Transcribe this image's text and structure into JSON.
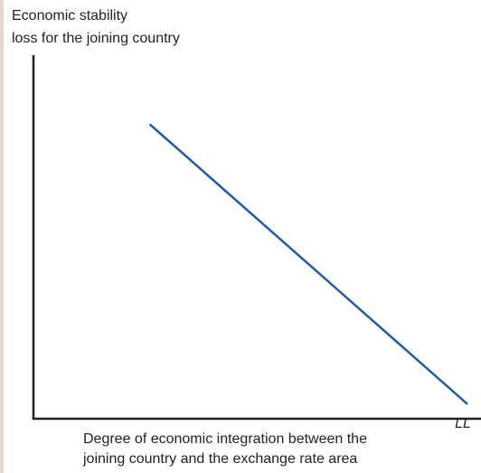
{
  "colors": {
    "left_border": "#e4d6cf",
    "axis": "#231f20",
    "curve": "#1f5aa8",
    "text": "#231f20"
  },
  "chart_data": {
    "type": "line",
    "ylabel_lines": [
      "Economic stability",
      "loss for the joining country"
    ],
    "xlabel_lines": [
      "Degree of economic integration between the",
      "joining country and the exchange rate area"
    ],
    "series": [
      {
        "name": "LL",
        "x": [
          0.26,
          0.97
        ],
        "y": [
          0.81,
          0.04
        ]
      }
    ],
    "xlim": [
      0,
      1
    ],
    "ylim": [
      0,
      1
    ],
    "grid": false,
    "legend": "none"
  }
}
